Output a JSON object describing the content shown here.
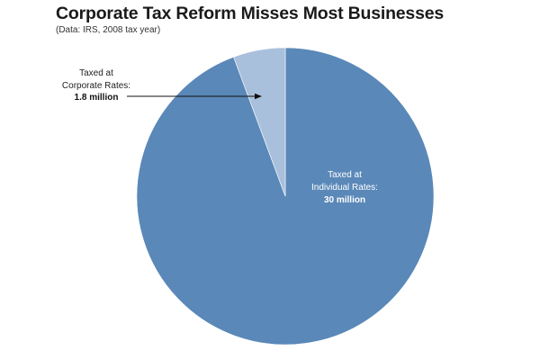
{
  "title": "Corporate Tax Reform Misses Most Businesses",
  "subtitle": "(Data: IRS, 2008 tax year)",
  "chart_data": {
    "type": "pie",
    "title": "Corporate Tax Reform Misses Most Businesses",
    "subtitle": "(Data: IRS, 2008 tax year)",
    "unit": "million",
    "slices": [
      {
        "label_line1": "Taxed at",
        "label_line2": "Individual Rates:",
        "value_text": "30 million",
        "value": 30,
        "color": "#5a88b8",
        "label_position": "inside"
      },
      {
        "label_line1": "Taxed at",
        "label_line2": "Corporate Rates:",
        "value_text": "1.8 million",
        "value": 1.8,
        "color": "#a9c0dc",
        "label_position": "outside-left-with-arrow"
      }
    ],
    "start_angle": "12 o'clock",
    "direction": "clockwise",
    "legend": "none"
  }
}
